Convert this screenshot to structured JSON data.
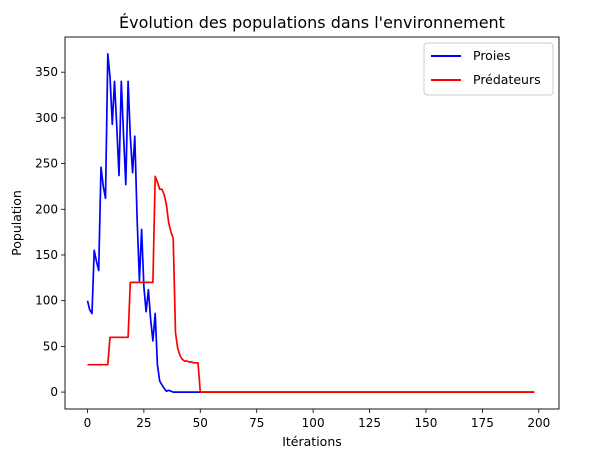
{
  "chart_data": {
    "type": "line",
    "title": "Évolution des populations dans l'environnement",
    "xlabel": "Itérations",
    "ylabel": "Population",
    "xlim": [
      -9.95,
      208.95
    ],
    "ylim": [
      -18.5,
      388.5
    ],
    "xticks": [
      0,
      25,
      50,
      75,
      100,
      125,
      150,
      175,
      200
    ],
    "yticks": [
      0,
      50,
      100,
      150,
      200,
      250,
      300,
      350
    ],
    "grid": false,
    "legend_position": "top-right",
    "series": [
      {
        "name": "Proies",
        "color": "#0000ff",
        "points": [
          [
            0,
            100
          ],
          [
            1,
            90
          ],
          [
            2,
            86
          ],
          [
            3,
            155
          ],
          [
            4,
            143
          ],
          [
            5,
            133
          ],
          [
            6,
            246
          ],
          [
            7,
            225
          ],
          [
            8,
            212
          ],
          [
            9,
            370
          ],
          [
            10,
            345
          ],
          [
            11,
            293
          ],
          [
            12,
            340
          ],
          [
            13,
            290
          ],
          [
            14,
            237
          ],
          [
            15,
            340
          ],
          [
            16,
            280
          ],
          [
            17,
            227
          ],
          [
            18,
            340
          ],
          [
            19,
            280
          ],
          [
            20,
            240
          ],
          [
            21,
            280
          ],
          [
            22,
            190
          ],
          [
            23,
            122
          ],
          [
            24,
            178
          ],
          [
            25,
            115
          ],
          [
            26,
            88
          ],
          [
            27,
            112
          ],
          [
            28,
            80
          ],
          [
            29,
            56
          ],
          [
            30,
            86
          ],
          [
            31,
            30
          ],
          [
            32,
            12
          ],
          [
            33,
            8
          ],
          [
            34,
            4
          ],
          [
            35,
            1
          ],
          [
            36,
            2
          ],
          [
            37,
            1
          ],
          [
            38,
            0
          ],
          [
            50,
            0
          ],
          [
            198,
            0
          ]
        ]
      },
      {
        "name": "Prédateurs",
        "color": "#ff0000",
        "points": [
          [
            0,
            30
          ],
          [
            9,
            30
          ],
          [
            10,
            60
          ],
          [
            18,
            60
          ],
          [
            19,
            120
          ],
          [
            29,
            120
          ],
          [
            30,
            236
          ],
          [
            31,
            230
          ],
          [
            32,
            222
          ],
          [
            33,
            222
          ],
          [
            34,
            216
          ],
          [
            35,
            205
          ],
          [
            36,
            185
          ],
          [
            37,
            175
          ],
          [
            38,
            168
          ],
          [
            39,
            65
          ],
          [
            40,
            48
          ],
          [
            41,
            40
          ],
          [
            42,
            36
          ],
          [
            43,
            34
          ],
          [
            44,
            34
          ],
          [
            45,
            33
          ],
          [
            46,
            33
          ],
          [
            47,
            32
          ],
          [
            48,
            32
          ],
          [
            49,
            32
          ],
          [
            50,
            0
          ],
          [
            198,
            0
          ]
        ]
      }
    ]
  }
}
